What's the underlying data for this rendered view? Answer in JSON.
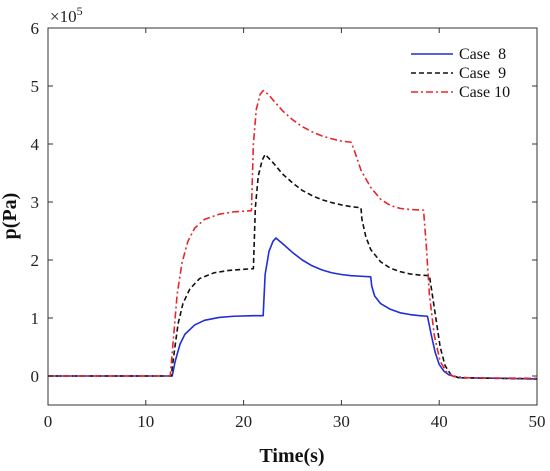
{
  "chart_data": {
    "type": "line",
    "xlabel": "Time(s)",
    "ylabel": "p(Pa)",
    "xlim": [
      0,
      50
    ],
    "ylim": [
      -50000,
      600000
    ],
    "xticks": [
      0,
      10,
      20,
      30,
      40,
      50
    ],
    "xtick_labels": [
      "0",
      "10",
      "20",
      "30",
      "40",
      "50"
    ],
    "yticks": [
      0,
      100000,
      200000,
      300000,
      400000,
      500000,
      600000
    ],
    "ytick_labels": [
      "0",
      "1",
      "2",
      "3",
      "4",
      "5",
      "6"
    ],
    "y_multiplier": {
      "base": "×10",
      "exponent": "5"
    },
    "grid": false,
    "legend_position": "top-right",
    "series": [
      {
        "name": "Case  8",
        "color": "#1f2fd6",
        "dash": "solid",
        "points": [
          [
            0,
            0
          ],
          [
            12.7,
            0
          ],
          [
            13.0,
            25000
          ],
          [
            13.5,
            55000
          ],
          [
            14.0,
            72000
          ],
          [
            15.0,
            88000
          ],
          [
            16.0,
            96000
          ],
          [
            17.5,
            101000
          ],
          [
            19.0,
            103000
          ],
          [
            21.0,
            104000
          ],
          [
            22.0,
            104000
          ],
          [
            22.2,
            175000
          ],
          [
            22.6,
            215000
          ],
          [
            23.0,
            232000
          ],
          [
            23.3,
            238000
          ],
          [
            24.0,
            228000
          ],
          [
            25.0,
            213000
          ],
          [
            26.0,
            200000
          ],
          [
            27.0,
            190000
          ],
          [
            28.0,
            183000
          ],
          [
            29.0,
            178000
          ],
          [
            30.0,
            175000
          ],
          [
            31.0,
            173000
          ],
          [
            32.0,
            172000
          ],
          [
            33.0,
            171000
          ],
          [
            33.1,
            155000
          ],
          [
            33.4,
            138000
          ],
          [
            34.0,
            125000
          ],
          [
            35.0,
            115000
          ],
          [
            36.0,
            109000
          ],
          [
            37.0,
            106000
          ],
          [
            38.0,
            104000
          ],
          [
            38.8,
            103000
          ],
          [
            39.2,
            70000
          ],
          [
            39.6,
            40000
          ],
          [
            40.0,
            20000
          ],
          [
            40.5,
            8000
          ],
          [
            41.0,
            2000
          ],
          [
            42.0,
            -3000
          ],
          [
            50.0,
            -5000
          ]
        ]
      },
      {
        "name": "Case  9",
        "color": "#111111",
        "dash": "dashed",
        "points": [
          [
            0,
            0
          ],
          [
            12.6,
            0
          ],
          [
            12.9,
            40000
          ],
          [
            13.3,
            90000
          ],
          [
            13.8,
            125000
          ],
          [
            14.5,
            150000
          ],
          [
            15.5,
            168000
          ],
          [
            17.0,
            178000
          ],
          [
            18.5,
            182000
          ],
          [
            20.0,
            184000
          ],
          [
            21.0,
            185000
          ],
          [
            21.2,
            290000
          ],
          [
            21.5,
            345000
          ],
          [
            21.9,
            372000
          ],
          [
            22.2,
            382000
          ],
          [
            23.0,
            368000
          ],
          [
            24.0,
            348000
          ],
          [
            25.0,
            333000
          ],
          [
            26.0,
            320000
          ],
          [
            27.0,
            311000
          ],
          [
            28.0,
            304000
          ],
          [
            29.0,
            299000
          ],
          [
            30.0,
            295000
          ],
          [
            31.0,
            292000
          ],
          [
            32.0,
            290000
          ],
          [
            32.1,
            270000
          ],
          [
            32.5,
            240000
          ],
          [
            33.0,
            218000
          ],
          [
            34.0,
            197000
          ],
          [
            35.0,
            186000
          ],
          [
            36.0,
            180000
          ],
          [
            37.0,
            176000
          ],
          [
            38.0,
            174000
          ],
          [
            39.0,
            173000
          ],
          [
            39.3,
            140000
          ],
          [
            39.7,
            95000
          ],
          [
            40.1,
            50000
          ],
          [
            40.6,
            18000
          ],
          [
            41.2,
            2000
          ],
          [
            42.0,
            -3000
          ],
          [
            50.0,
            -5000
          ]
        ]
      },
      {
        "name": "Case 10",
        "color": "#e8262b",
        "dash": "dashdot",
        "points": [
          [
            0,
            0
          ],
          [
            12.5,
            0
          ],
          [
            12.8,
            60000
          ],
          [
            13.2,
            140000
          ],
          [
            13.7,
            195000
          ],
          [
            14.3,
            232000
          ],
          [
            15.0,
            255000
          ],
          [
            16.0,
            270000
          ],
          [
            17.5,
            279000
          ],
          [
            19.0,
            283000
          ],
          [
            20.8,
            285000
          ],
          [
            21.0,
            400000
          ],
          [
            21.3,
            460000
          ],
          [
            21.7,
            486000
          ],
          [
            22.0,
            492000
          ],
          [
            22.5,
            486000
          ],
          [
            23.0,
            476000
          ],
          [
            24.0,
            457000
          ],
          [
            25.0,
            442000
          ],
          [
            26.0,
            430000
          ],
          [
            27.0,
            421000
          ],
          [
            28.0,
            414000
          ],
          [
            29.0,
            409000
          ],
          [
            30.0,
            405000
          ],
          [
            31.0,
            403000
          ],
          [
            31.4,
            385000
          ],
          [
            32.0,
            355000
          ],
          [
            33.0,
            325000
          ],
          [
            34.0,
            305000
          ],
          [
            35.0,
            294000
          ],
          [
            36.0,
            289000
          ],
          [
            37.0,
            287000
          ],
          [
            38.4,
            286000
          ],
          [
            38.7,
            220000
          ],
          [
            39.0,
            140000
          ],
          [
            39.5,
            70000
          ],
          [
            40.1,
            25000
          ],
          [
            40.8,
            6000
          ],
          [
            41.5,
            -1000
          ],
          [
            43.0,
            -3000
          ],
          [
            50.0,
            -4000
          ]
        ]
      }
    ]
  }
}
